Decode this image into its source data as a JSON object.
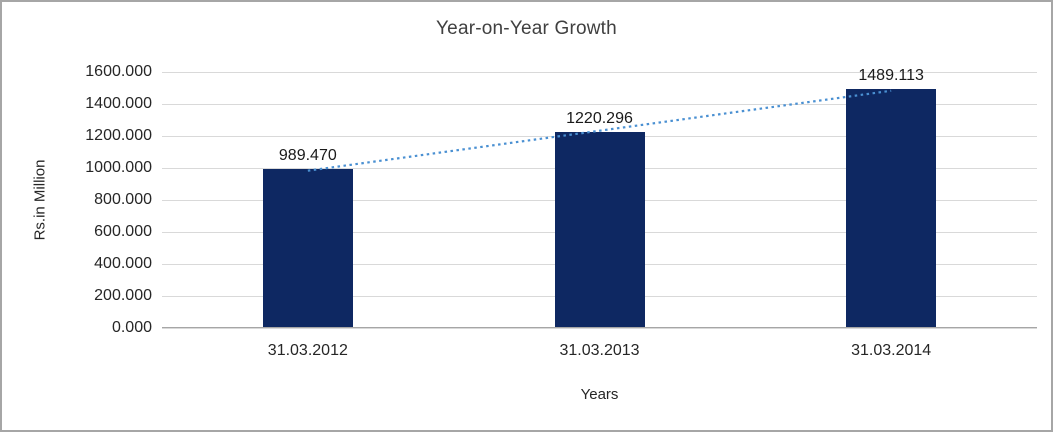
{
  "chart_data": {
    "type": "bar",
    "title": "Year-on-Year Growth",
    "categories": [
      "31.03.2012",
      "31.03.2013",
      "31.03.2014"
    ],
    "values": [
      989.47,
      1220.296,
      1489.113
    ],
    "value_labels": [
      "989.470",
      "1220.296",
      "1489.113"
    ],
    "xlabel": "Years",
    "ylabel": "Rs.in Million",
    "ylim": [
      0,
      1600
    ],
    "ytick_step": 200,
    "ytick_labels": [
      "0.000",
      "200.000",
      "400.000",
      "600.000",
      "800.000",
      "1000.000",
      "1200.000",
      "1400.000",
      "1600.000"
    ],
    "grid": true,
    "legend": "none",
    "bar_color": "#0e2862",
    "gridline_color": "#d9d9d9",
    "trendline": {
      "type": "linear",
      "style": "dotted",
      "color": "#4a90d2"
    }
  }
}
